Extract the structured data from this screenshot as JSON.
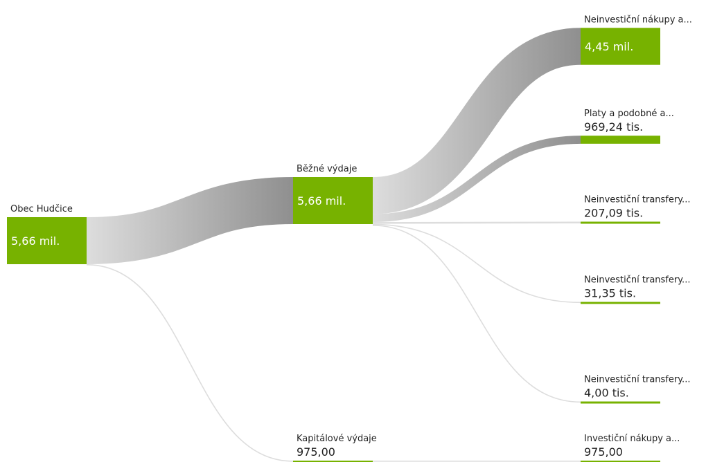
{
  "colors": {
    "node": "#77b200",
    "link_light": "#dddddd",
    "link_dark": "#8f8f8f"
  },
  "chart_data": {
    "type": "sankey",
    "nodes": [
      {
        "id": "root",
        "label": "Obec Hudčice",
        "value_text": "5,66 mil.",
        "value": 5660000,
        "level": 0
      },
      {
        "id": "bezne",
        "label": "Běžné výdaje",
        "value_text": "5,66 mil.",
        "value": 5660000,
        "level": 1
      },
      {
        "id": "kapitalove",
        "label": "Kapitálové výdaje",
        "value_text": "975,00",
        "value": 975,
        "level": 1
      },
      {
        "id": "nakupy",
        "label": "Neinvestiční nákupy a...",
        "value_text": "4,45 mil.",
        "value": 4450000,
        "level": 2
      },
      {
        "id": "platy",
        "label": "Platy a podobné a...",
        "value_text": "969,24 tis.",
        "value": 969240,
        "level": 2
      },
      {
        "id": "transfery1",
        "label": "Neinvestiční transfery...",
        "value_text": "207,09 tis.",
        "value": 207090,
        "level": 2
      },
      {
        "id": "transfery2",
        "label": "Neinvestiční transfery...",
        "value_text": "31,35 tis.",
        "value": 31350,
        "level": 2
      },
      {
        "id": "transfery3",
        "label": "Neinvestiční transfery...",
        "value_text": "4,00 tis.",
        "value": 4000,
        "level": 2
      },
      {
        "id": "investicni",
        "label": "Investiční nákupy a...",
        "value_text": "975,00",
        "value": 975,
        "level": 2
      }
    ],
    "links": [
      {
        "source": "root",
        "target": "bezne",
        "value": 5660000
      },
      {
        "source": "root",
        "target": "kapitalove",
        "value": 975
      },
      {
        "source": "bezne",
        "target": "nakupy",
        "value": 4450000
      },
      {
        "source": "bezne",
        "target": "platy",
        "value": 969240
      },
      {
        "source": "bezne",
        "target": "transfery1",
        "value": 207090
      },
      {
        "source": "bezne",
        "target": "transfery2",
        "value": 31350
      },
      {
        "source": "bezne",
        "target": "transfery3",
        "value": 4000
      },
      {
        "source": "kapitalove",
        "target": "investicni",
        "value": 975
      }
    ]
  }
}
